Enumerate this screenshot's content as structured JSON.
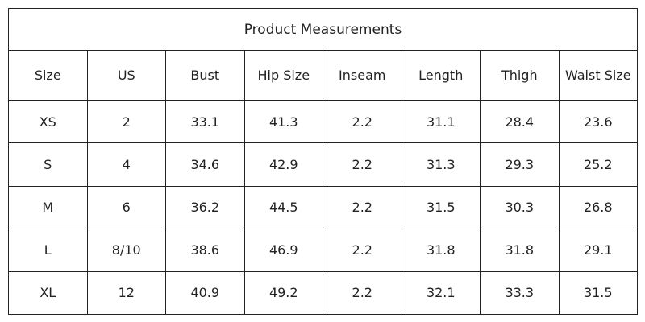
{
  "table": {
    "title": "Product Measurements",
    "header": [
      "Size",
      "US",
      "Bust",
      "Hip Size",
      "Inseam",
      "Length",
      "Thigh",
      "Waist Size"
    ],
    "rows": [
      [
        "XS",
        "2",
        "33.1",
        "41.3",
        "2.2",
        "31.1",
        "28.4",
        "23.6"
      ],
      [
        "S",
        "4",
        "34.6",
        "42.9",
        "2.2",
        "31.3",
        "29.3",
        "25.2"
      ],
      [
        "M",
        "6",
        "36.2",
        "44.5",
        "2.2",
        "31.5",
        "30.3",
        "26.8"
      ],
      [
        "L",
        "8/10",
        "38.6",
        "46.9",
        "2.2",
        "31.8",
        "31.8",
        "29.1"
      ],
      [
        "XL",
        "12",
        "40.9",
        "49.2",
        "2.2",
        "32.1",
        "33.3",
        "31.5"
      ]
    ]
  }
}
